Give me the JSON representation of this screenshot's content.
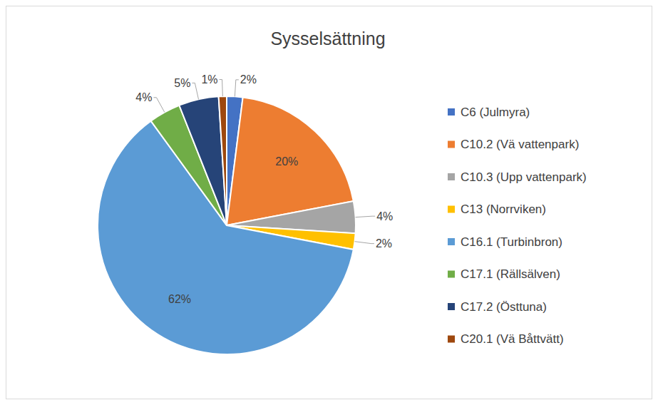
{
  "chart_data": {
    "type": "pie",
    "title": "Sysselsättning",
    "categories": [
      "C6 (Julmyra)",
      "C10.2 (Vä vattenpark)",
      "C10.3 (Upp vattenpark)",
      "C13 (Norrviken)",
      "C16.1 (Turbinbron)",
      "C17.1 (Rällsälven)",
      "C17.2 (Östtuna)",
      "C20.1 (Vä Båttvätt)"
    ],
    "values": [
      2,
      20,
      4,
      2,
      62,
      4,
      5,
      1
    ],
    "value_labels": [
      "2%",
      "20%",
      "4%",
      "2%",
      "62%",
      "4%",
      "5%",
      "1%"
    ],
    "colors": [
      "#4472c4",
      "#ed7d31",
      "#a5a5a5",
      "#ffc000",
      "#5b9bd5",
      "#70ad47",
      "#264478",
      "#9e480e"
    ],
    "legend": "right",
    "data_labels": true
  }
}
